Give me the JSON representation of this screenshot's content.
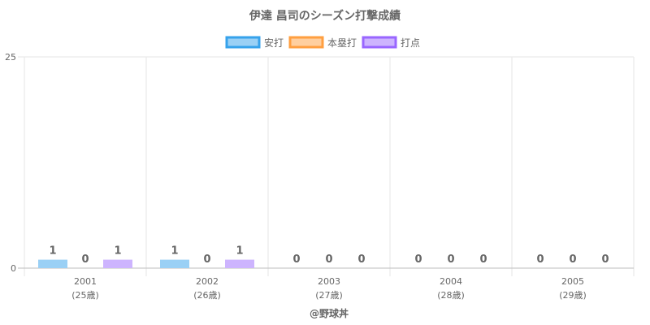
{
  "chart_data": {
    "type": "bar",
    "title": "伊達 昌司のシーズン打撃成績",
    "categories": [
      "2001",
      "2002",
      "2003",
      "2004",
      "2005"
    ],
    "category_sublabels": [
      "(25歳)",
      "(26歳)",
      "(27歳)",
      "(28歳)",
      "(29歳)"
    ],
    "series": [
      {
        "name": "安打",
        "values": [
          1,
          1,
          0,
          0,
          0
        ],
        "fill": "#9ad0f5",
        "stroke": "#36a2eb"
      },
      {
        "name": "本塁打",
        "values": [
          0,
          0,
          0,
          0,
          0
        ],
        "fill": "#ffcf9f",
        "stroke": "#ff9f40"
      },
      {
        "name": "打点",
        "values": [
          1,
          1,
          0,
          0,
          0
        ],
        "fill": "#cdb4fe",
        "stroke": "#9966ff"
      }
    ],
    "ylim": [
      0,
      25
    ],
    "yticks": [
      "0",
      "25"
    ],
    "grid": true,
    "legend_position": "top",
    "footer": "@野球丼"
  }
}
